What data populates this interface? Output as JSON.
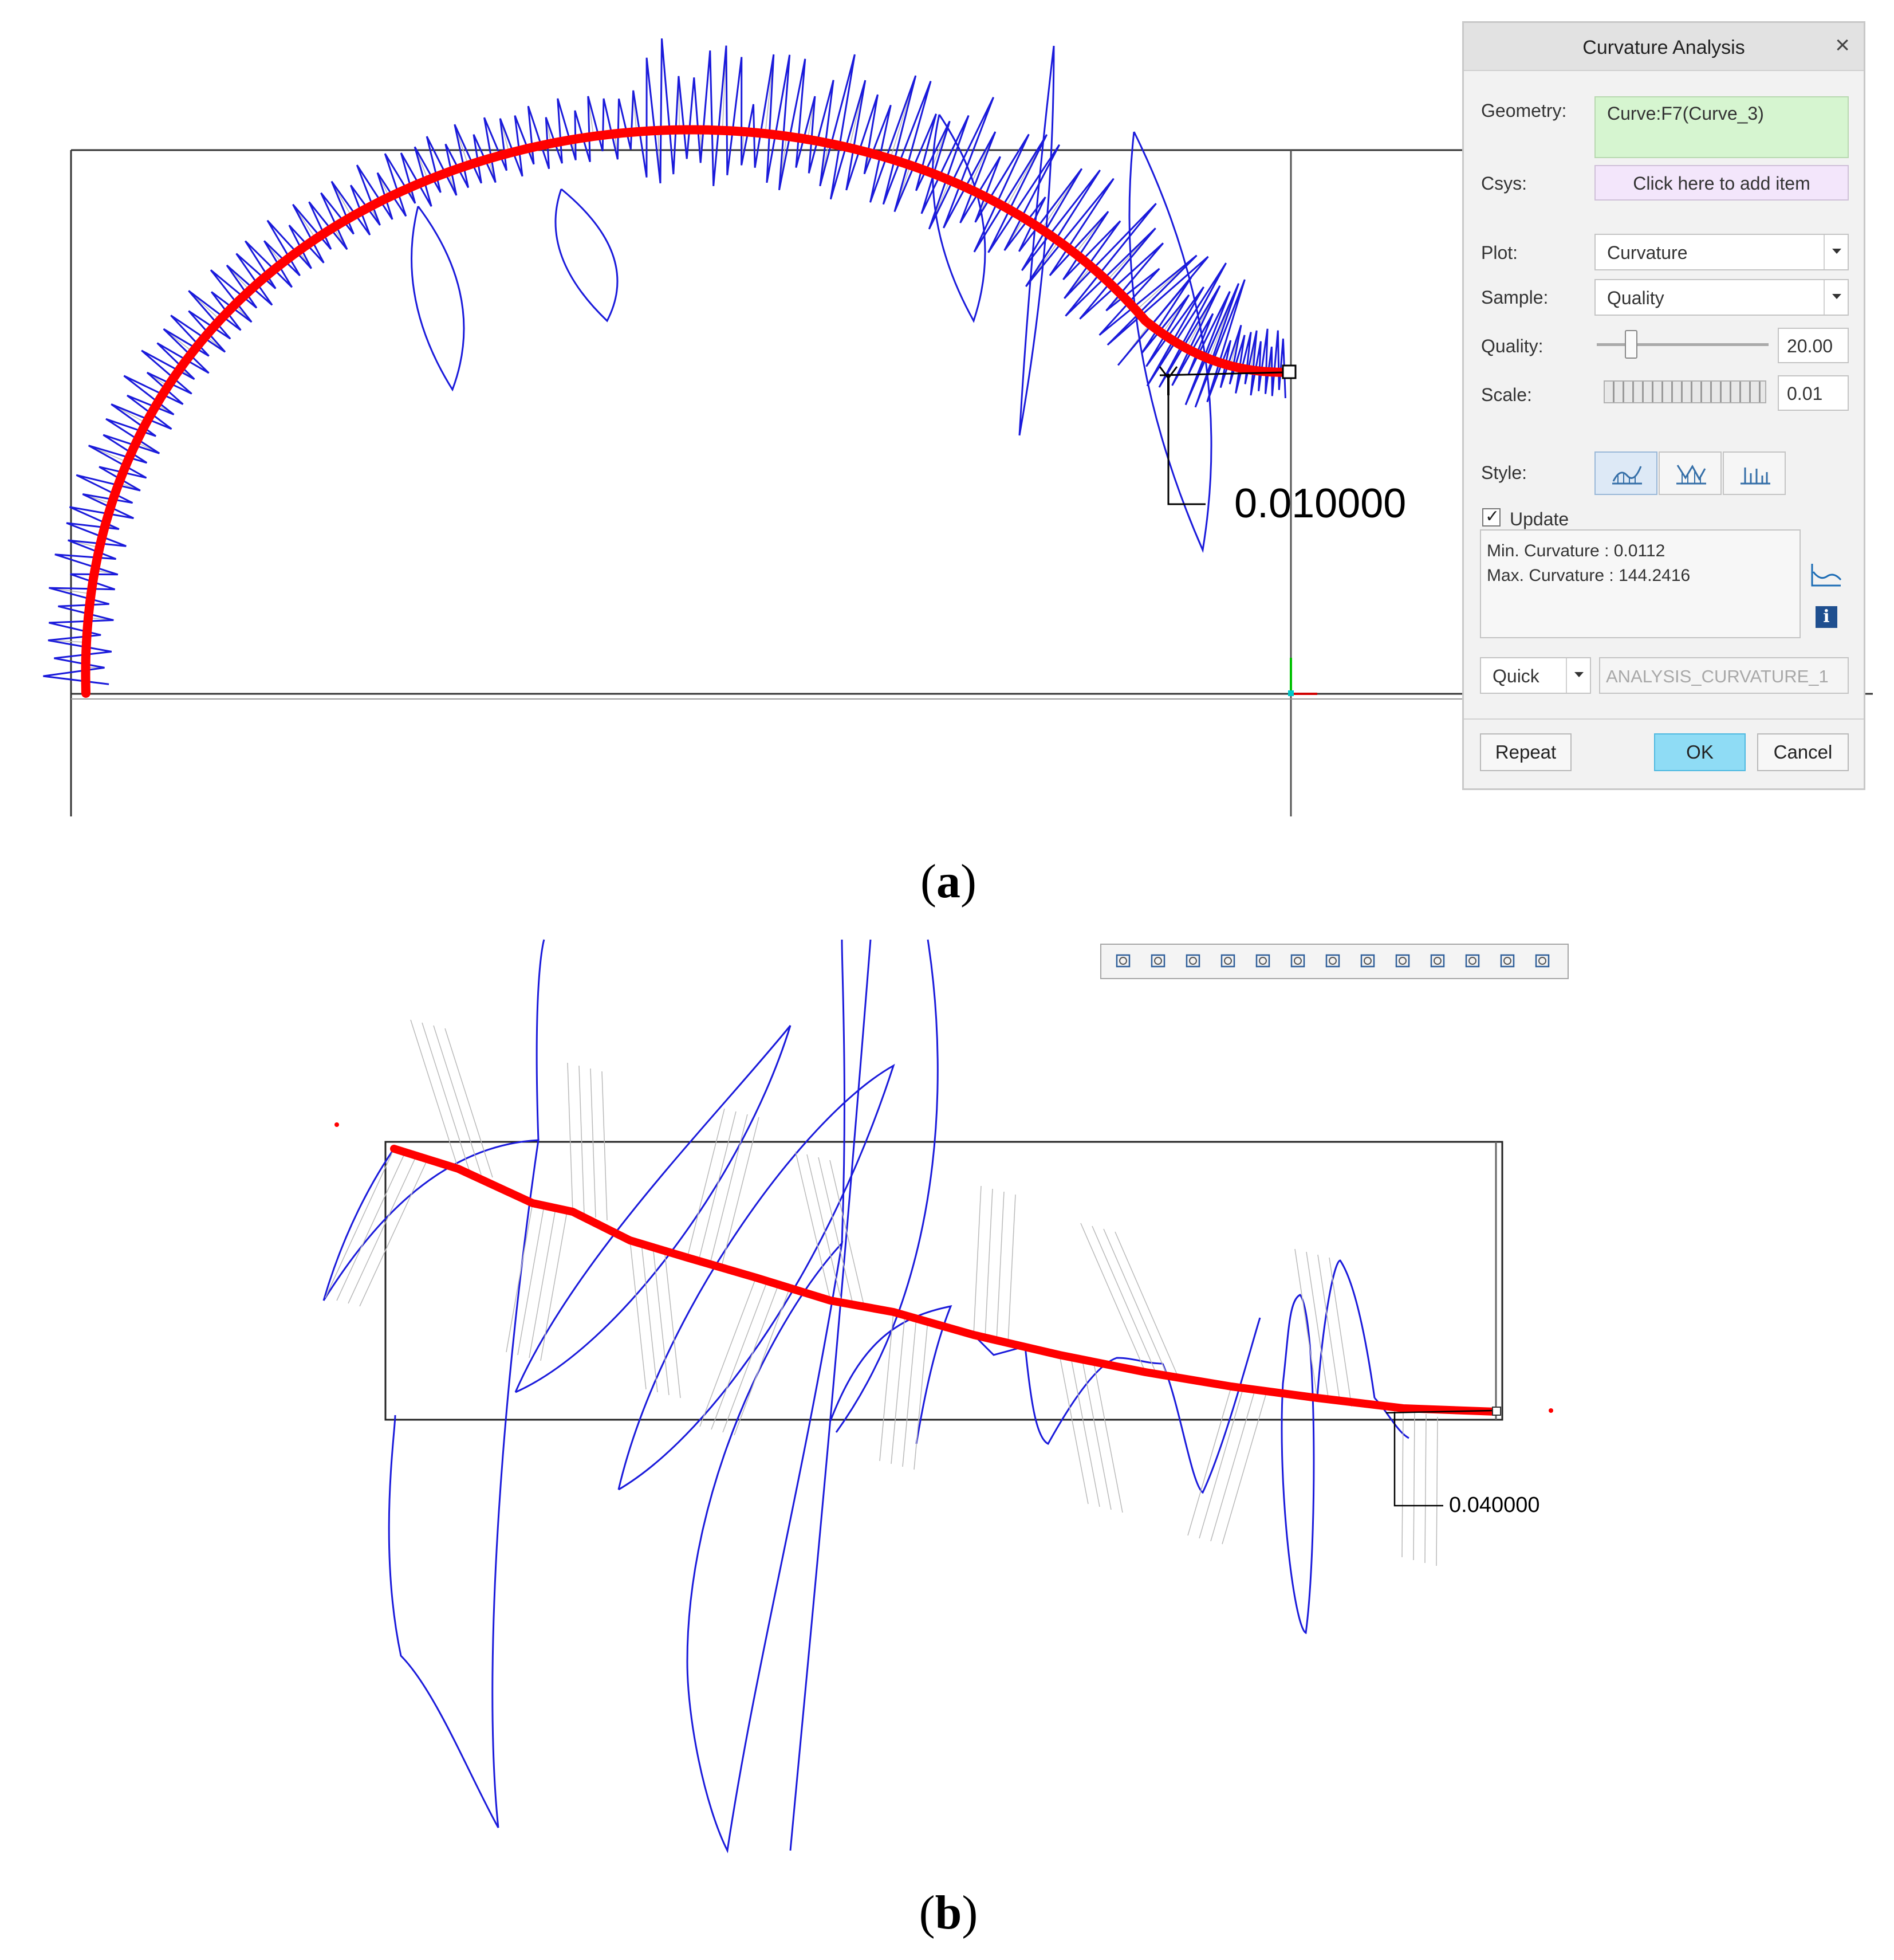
{
  "panel_a": {
    "caption_letter": "a",
    "dimension_label": "0.010000",
    "dialog": {
      "title": "Curvature Analysis",
      "close_glyph": "×",
      "geometry_label": "Geometry:",
      "geometry_value": "Curve:F7(Curve_3)",
      "csys_label": "Csys:",
      "csys_value": "Click here to add item",
      "plot_label": "Plot:",
      "plot_value": "Curvature",
      "sample_label": "Sample:",
      "sample_value": "Quality",
      "quality_label": "Quality:",
      "quality_value": "20.00",
      "quality_slider_fraction": 0.2,
      "scale_label": "Scale:",
      "scale_value": "0.01",
      "style_label": "Style:",
      "style_selected_index": 0,
      "update_label": "Update",
      "update_checked": true,
      "min_curvature_text": "Min. Curvature : 0.0112",
      "max_curvature_text": "Max. Curvature : 144.2416",
      "mode_value": "Quick",
      "analysis_name": "ANALYSIS_CURVATURE_1",
      "repeat_label": "Repeat",
      "ok_label": "OK",
      "cancel_label": "Cancel"
    },
    "colors": {
      "curve": "#ff0000",
      "comb": "#1a1adb",
      "hatch": "#b9b9b9",
      "ok_button": "#8fdcf5",
      "geometry_field": "#d6f5d0",
      "csys_field": "#f3e6fb"
    }
  },
  "panel_b": {
    "caption_letter": "b",
    "dimension_label": "0.040000",
    "toolbar_icons": [
      "refit-icon",
      "zoom-in-icon",
      "zoom-out-icon",
      "repaint-icon",
      "spin-icon",
      "view-cube-icon",
      "saved-views-icon",
      "display-style-icon",
      "datum-display-icon",
      "appearance-icon",
      "annotation-icon",
      "sketch-icon",
      "model-icon"
    ]
  }
}
